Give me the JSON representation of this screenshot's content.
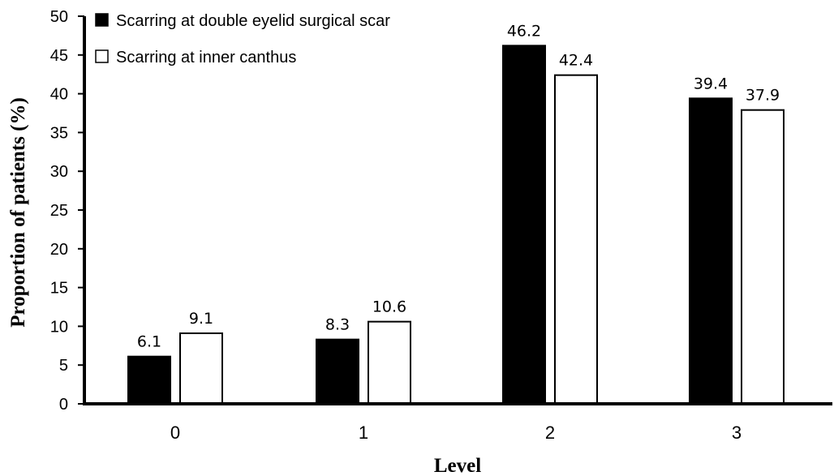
{
  "chart_data": {
    "type": "bar",
    "categories": [
      "0",
      "1",
      "2",
      "3"
    ],
    "series": [
      {
        "name": "Scarring at double eyelid surgical scar",
        "values": [
          6.1,
          8.3,
          46.2,
          39.4
        ],
        "color": "#000000"
      },
      {
        "name": "Scarring at inner canthus",
        "values": [
          9.1,
          10.6,
          42.4,
          37.9
        ],
        "color": "#ffffff"
      }
    ],
    "data_labels": [
      [
        "6.1",
        "8.3",
        "46.2",
        "39.4"
      ],
      [
        "9.1",
        "10.6",
        "42.4",
        "37.9"
      ]
    ],
    "xlabel": "Level",
    "ylabel": "Proportion of patients (%)",
    "ylim": [
      0,
      50
    ],
    "yticks": [
      "0",
      "5",
      "10",
      "15",
      "20",
      "25",
      "30",
      "35",
      "40",
      "45",
      "50"
    ],
    "grid": false,
    "legend_position": "top-left"
  }
}
